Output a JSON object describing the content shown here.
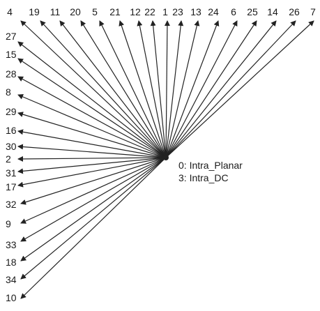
{
  "diagram": {
    "top_mode_labels": [
      "4",
      "19",
      "11",
      "20",
      "5",
      "21",
      "12",
      "22",
      "1",
      "23",
      "13",
      "24",
      "6",
      "25",
      "14",
      "26",
      "7"
    ],
    "left_mode_labels": [
      "27",
      "15",
      "28",
      "8",
      "29",
      "16",
      "30",
      "2",
      "31",
      "17",
      "32",
      "9",
      "33",
      "18",
      "34",
      "10"
    ],
    "legend": [
      "0: Intra_Planar",
      "3: Intra_DC"
    ],
    "colors": {
      "line": "#222222",
      "text": "#1a1a1a",
      "background": "#ffffff"
    }
  }
}
